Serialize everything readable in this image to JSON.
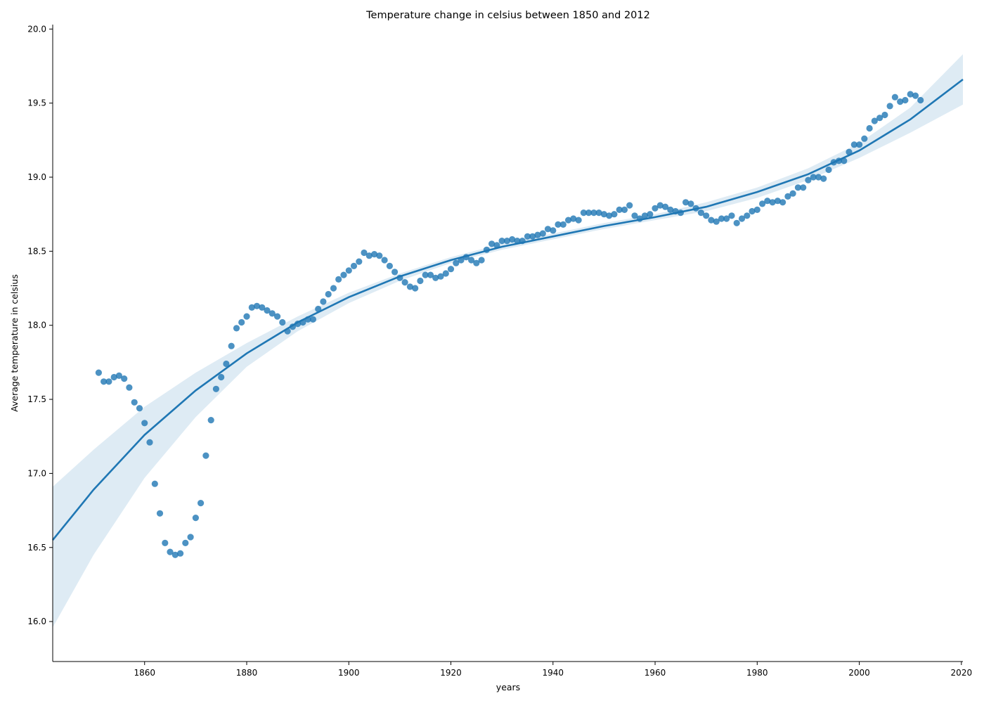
{
  "chart_data": {
    "type": "scatter",
    "title": "Temperature change in celsius between 1850 and 2012",
    "xlabel": "years",
    "ylabel": "Average temperature in celsius",
    "xlim": [
      1842,
      2020.3
    ],
    "ylim": [
      15.73,
      20.03
    ],
    "xticks": [
      1860,
      1880,
      1900,
      1920,
      1940,
      1960,
      1980,
      2000,
      2020
    ],
    "yticks": [
      16.0,
      16.5,
      17.0,
      17.5,
      18.0,
      18.5,
      19.0,
      19.5,
      20.0
    ],
    "grid": false,
    "legend": "none",
    "colors": {
      "series": "#1f77b4"
    },
    "series": [
      {
        "kind": "points",
        "x": [
          1851,
          1852,
          1853,
          1854,
          1855,
          1856,
          1857,
          1858,
          1859,
          1860,
          1861,
          1862,
          1863,
          1864,
          1865,
          1866,
          1867,
          1868,
          1869,
          1870,
          1871,
          1872,
          1873,
          1874,
          1875,
          1876,
          1877,
          1878,
          1879,
          1880,
          1881,
          1882,
          1883,
          1884,
          1885,
          1886,
          1887,
          1888,
          1889,
          1890,
          1891,
          1892,
          1893,
          1894,
          1895,
          1896,
          1897,
          1898,
          1899,
          1900,
          1901,
          1902,
          1903,
          1904,
          1905,
          1906,
          1907,
          1908,
          1909,
          1910,
          1911,
          1912,
          1913,
          1914,
          1915,
          1916,
          1917,
          1918,
          1919,
          1920,
          1921,
          1922,
          1923,
          1924,
          1925,
          1926,
          1927,
          1928,
          1929,
          1930,
          1931,
          1932,
          1933,
          1934,
          1935,
          1936,
          1937,
          1938,
          1939,
          1940,
          1941,
          1942,
          1943,
          1944,
          1945,
          1946,
          1947,
          1948,
          1949,
          1950,
          1951,
          1952,
          1953,
          1954,
          1955,
          1956,
          1957,
          1958,
          1959,
          1960,
          1961,
          1962,
          1963,
          1964,
          1965,
          1966,
          1967,
          1968,
          1969,
          1970,
          1971,
          1972,
          1973,
          1974,
          1975,
          1976,
          1977,
          1978,
          1979,
          1980,
          1981,
          1982,
          1983,
          1984,
          1985,
          1986,
          1987,
          1988,
          1989,
          1990,
          1991,
          1992,
          1993,
          1994,
          1995,
          1996,
          1997,
          1998,
          1999,
          2000,
          2001,
          2002,
          2003,
          2004,
          2005,
          2006,
          2007,
          2008,
          2009,
          2010,
          2011,
          2012
        ],
        "y": [
          17.68,
          17.62,
          17.62,
          17.65,
          17.66,
          17.64,
          17.58,
          17.48,
          17.44,
          17.34,
          17.21,
          16.93,
          16.73,
          16.53,
          16.47,
          16.45,
          16.46,
          16.53,
          16.57,
          16.7,
          16.8,
          17.12,
          17.36,
          17.57,
          17.65,
          17.74,
          17.86,
          17.98,
          18.02,
          18.06,
          18.12,
          18.13,
          18.12,
          18.1,
          18.08,
          18.06,
          18.02,
          17.96,
          17.99,
          18.01,
          18.02,
          18.04,
          18.04,
          18.11,
          18.16,
          18.21,
          18.25,
          18.31,
          18.34,
          18.37,
          18.4,
          18.43,
          18.49,
          18.47,
          18.48,
          18.47,
          18.44,
          18.4,
          18.36,
          18.32,
          18.29,
          18.26,
          18.25,
          18.3,
          18.34,
          18.34,
          18.32,
          18.33,
          18.35,
          18.38,
          18.42,
          18.44,
          18.46,
          18.44,
          18.42,
          18.44,
          18.51,
          18.55,
          18.54,
          18.57,
          18.57,
          18.58,
          18.57,
          18.57,
          18.6,
          18.6,
          18.61,
          18.62,
          18.65,
          18.64,
          18.68,
          18.68,
          18.71,
          18.72,
          18.71,
          18.76,
          18.76,
          18.76,
          18.76,
          18.75,
          18.74,
          18.75,
          18.78,
          18.78,
          18.81,
          18.74,
          18.72,
          18.74,
          18.75,
          18.79,
          18.81,
          18.8,
          18.78,
          18.77,
          18.76,
          18.83,
          18.82,
          18.79,
          18.76,
          18.74,
          18.71,
          18.7,
          18.72,
          18.72,
          18.74,
          18.69,
          18.72,
          18.74,
          18.77,
          18.78,
          18.82,
          18.84,
          18.83,
          18.84,
          18.83,
          18.87,
          18.89,
          18.93,
          18.93,
          18.98,
          19.0,
          19.0,
          18.99,
          19.05,
          19.1,
          19.11,
          19.11,
          19.17,
          19.22,
          19.22,
          19.26,
          19.33,
          19.38,
          19.4,
          19.42,
          19.48,
          19.54,
          19.51,
          19.52,
          19.56,
          19.55,
          19.52
        ]
      },
      {
        "kind": "regression_fit",
        "x": [
          1842,
          1850,
          1860,
          1870,
          1880,
          1890,
          1900,
          1910,
          1920,
          1930,
          1940,
          1950,
          1960,
          1970,
          1980,
          1990,
          2000,
          2010,
          2020.3
        ],
        "y": [
          16.55,
          16.89,
          17.26,
          17.56,
          17.81,
          18.02,
          18.19,
          18.33,
          18.44,
          18.53,
          18.6,
          18.67,
          18.73,
          18.8,
          18.9,
          19.02,
          19.18,
          19.39,
          19.66
        ],
        "ci_upper": [
          16.91,
          17.16,
          17.45,
          17.68,
          17.88,
          18.06,
          18.22,
          18.35,
          18.46,
          18.55,
          18.62,
          18.69,
          18.75,
          18.83,
          18.93,
          19.06,
          19.23,
          19.47,
          19.83
        ],
        "ci_lower": [
          15.96,
          16.45,
          16.97,
          17.38,
          17.72,
          17.96,
          18.15,
          18.3,
          18.42,
          18.51,
          18.58,
          18.65,
          18.71,
          18.77,
          18.86,
          18.98,
          19.13,
          19.3,
          19.49
        ]
      }
    ]
  }
}
